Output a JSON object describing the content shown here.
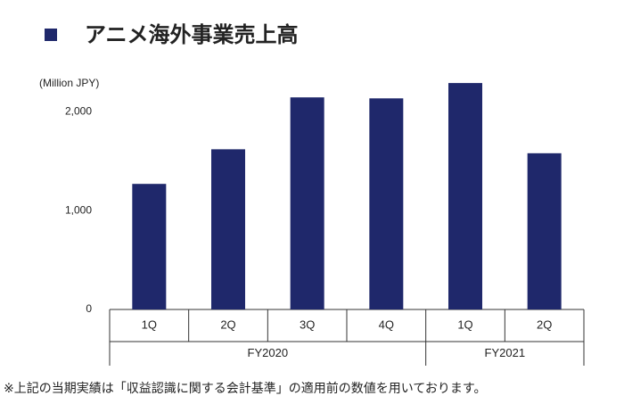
{
  "chart_data": {
    "type": "bar",
    "title": "アニメ海外事業売上高",
    "y_label": "(Million JPY)",
    "color": "#1f286b",
    "groups": [
      {
        "name": "FY2020",
        "categories": [
          "1Q",
          "2Q",
          "3Q",
          "4Q"
        ],
        "values": [
          1270,
          1620,
          2145,
          2135
        ]
      },
      {
        "name": "FY2021",
        "categories": [
          "1Q",
          "2Q"
        ],
        "values": [
          2290,
          1580
        ]
      }
    ],
    "ylim": [
      0,
      2300
    ],
    "yticks": [
      0,
      {
        "value": 1000,
        "label": "1,000"
      },
      {
        "value": 2000,
        "label": "2,000"
      }
    ],
    "footnote": "※上記の当期実績は「収益認識に関する会計基準」の適用前の数値を用いております。"
  }
}
